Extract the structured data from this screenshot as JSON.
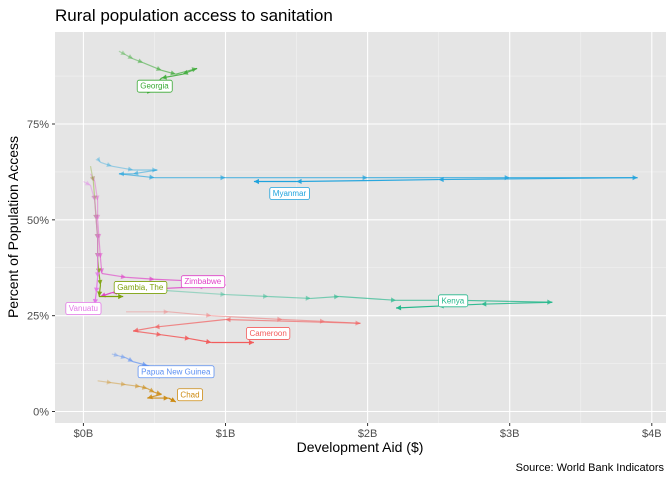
{
  "chart_data": {
    "type": "line",
    "title": "Rural population access to sanitation",
    "xlabel": "Development Aid ($)",
    "ylabel": "Percent of Population Access",
    "caption": "Source: World Bank Indicators",
    "xlim": [
      -0.2,
      4.1
    ],
    "ylim": [
      -3,
      99
    ],
    "x_units": "billions USD",
    "x_ticks": [
      {
        "value": 0,
        "label": "$0B"
      },
      {
        "value": 1,
        "label": "$1B"
      },
      {
        "value": 2,
        "label": "$2B"
      },
      {
        "value": 3,
        "label": "$3B"
      },
      {
        "value": 4,
        "label": "$4B"
      }
    ],
    "y_ticks": [
      {
        "value": 0,
        "label": "0%"
      },
      {
        "value": 25,
        "label": "25%"
      },
      {
        "value": 50,
        "label": "50%"
      },
      {
        "value": 75,
        "label": "75%"
      }
    ],
    "grid": true,
    "background": "#e5e5e5",
    "legend": "none",
    "series": [
      {
        "name": "Georgia",
        "color": "#3aaa35",
        "points": [
          [
            0.25,
            94
          ],
          [
            0.3,
            93
          ],
          [
            0.35,
            92
          ],
          [
            0.42,
            91
          ],
          [
            0.55,
            89
          ],
          [
            0.65,
            88
          ],
          [
            0.8,
            89.5
          ],
          [
            0.7,
            88
          ],
          [
            0.55,
            87
          ],
          [
            0.48,
            84
          ],
          [
            0.45,
            83
          ]
        ],
        "label_x": 0.5,
        "label_y": 85
      },
      {
        "name": "Myanmar",
        "color": "#1fa3dd",
        "points": [
          [
            0.1,
            66
          ],
          [
            0.12,
            65
          ],
          [
            0.2,
            64
          ],
          [
            0.35,
            63
          ],
          [
            0.52,
            63
          ],
          [
            0.35,
            62
          ],
          [
            0.25,
            62
          ],
          [
            0.5,
            61
          ],
          [
            1.0,
            61
          ],
          [
            2.0,
            61
          ],
          [
            3.0,
            61
          ],
          [
            3.9,
            61
          ],
          [
            2.5,
            60.5
          ],
          [
            1.5,
            60
          ],
          [
            1.2,
            60
          ]
        ],
        "label_x": 1.45,
        "label_y": 57
      },
      {
        "name": "Kenya",
        "color": "#25b88c",
        "points": [
          [
            0.3,
            32
          ],
          [
            0.6,
            31.5
          ],
          [
            1.0,
            30.5
          ],
          [
            1.3,
            30
          ],
          [
            1.6,
            29.5
          ],
          [
            1.8,
            30
          ],
          [
            2.2,
            29
          ],
          [
            2.65,
            29
          ],
          [
            3.3,
            28.5
          ],
          [
            2.8,
            28
          ],
          [
            2.5,
            27.5
          ],
          [
            2.2,
            27
          ]
        ],
        "label_x": 2.6,
        "label_y": 29
      },
      {
        "name": "Zimbabwe",
        "color": "#e043c9",
        "points": [
          [
            0.05,
            62
          ],
          [
            0.08,
            60
          ],
          [
            0.1,
            55
          ],
          [
            0.1,
            50
          ],
          [
            0.11,
            45
          ],
          [
            0.12,
            40
          ],
          [
            0.13,
            36
          ],
          [
            0.3,
            35
          ],
          [
            0.5,
            34.5
          ],
          [
            0.8,
            34
          ],
          [
            1.0,
            33
          ],
          [
            0.8,
            32.5
          ],
          [
            0.5,
            32
          ],
          [
            0.2,
            31
          ],
          [
            0.12,
            30
          ]
        ],
        "label_x": 0.84,
        "label_y": 34
      },
      {
        "name": "Gambia, The",
        "color": "#7ca10a",
        "points": [
          [
            0.05,
            64
          ],
          [
            0.07,
            60
          ],
          [
            0.08,
            55
          ],
          [
            0.09,
            50
          ],
          [
            0.1,
            45
          ],
          [
            0.1,
            40
          ],
          [
            0.11,
            36
          ],
          [
            0.12,
            33
          ],
          [
            0.11,
            30
          ],
          [
            0.28,
            30
          ]
        ],
        "label_x": 0.4,
        "label_y": 32.5
      },
      {
        "name": "Vanuatu",
        "color": "#e377e8",
        "points": [
          [
            0.0,
            60
          ],
          [
            0.05,
            59
          ],
          [
            0.08,
            55
          ],
          [
            0.09,
            50
          ],
          [
            0.1,
            45
          ],
          [
            0.1,
            40
          ],
          [
            0.1,
            35
          ],
          [
            0.09,
            31
          ],
          [
            0.08,
            28
          ]
        ],
        "label_x": 0.0,
        "label_y": 27
      },
      {
        "name": "Cameroon",
        "color": "#f25c5c",
        "points": [
          [
            0.3,
            26
          ],
          [
            0.6,
            26
          ],
          [
            0.9,
            25
          ],
          [
            1.4,
            24
          ],
          [
            1.7,
            23.5
          ],
          [
            1.95,
            23
          ],
          [
            1.0,
            24
          ],
          [
            0.5,
            22
          ],
          [
            0.35,
            21
          ],
          [
            0.55,
            20
          ],
          [
            0.75,
            19
          ],
          [
            0.9,
            18
          ],
          [
            1.2,
            18
          ]
        ],
        "label_x": 1.3,
        "label_y": 20.5
      },
      {
        "name": "Papua New Guinea",
        "color": "#5b8ff2",
        "points": [
          [
            0.2,
            15
          ],
          [
            0.25,
            14.5
          ],
          [
            0.3,
            14
          ],
          [
            0.35,
            13
          ],
          [
            0.45,
            12
          ],
          [
            0.55,
            11
          ],
          [
            0.62,
            10
          ],
          [
            0.5,
            9
          ]
        ],
        "label_x": 0.65,
        "label_y": 10.5
      },
      {
        "name": "Chad",
        "color": "#cc8a12",
        "points": [
          [
            0.1,
            8
          ],
          [
            0.2,
            7.5
          ],
          [
            0.3,
            7
          ],
          [
            0.4,
            6.5
          ],
          [
            0.45,
            6
          ],
          [
            0.5,
            5
          ],
          [
            0.55,
            4.5
          ],
          [
            0.45,
            3.5
          ],
          [
            0.6,
            3.5
          ],
          [
            0.65,
            2.5
          ]
        ],
        "label_x": 0.75,
        "label_y": 4.5
      }
    ]
  }
}
